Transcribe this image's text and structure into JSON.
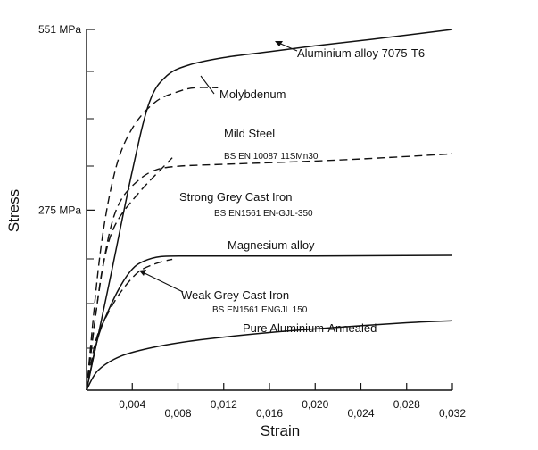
{
  "chart_data": {
    "type": "line",
    "xlabel": "Strain",
    "ylabel": "Stress",
    "xlim": [
      0,
      0.032
    ],
    "ylim": [
      0,
      551
    ],
    "x_ticks": [
      {
        "value": 0.004,
        "label": "0,004",
        "row": "upper"
      },
      {
        "value": 0.008,
        "label": "0,008",
        "row": "lower"
      },
      {
        "value": 0.012,
        "label": "0,012",
        "row": "upper"
      },
      {
        "value": 0.016,
        "label": "0,016",
        "row": "lower"
      },
      {
        "value": 0.02,
        "label": "0,020",
        "row": "upper"
      },
      {
        "value": 0.024,
        "label": "0,024",
        "row": "lower"
      },
      {
        "value": 0.028,
        "label": "0,028",
        "row": "upper"
      },
      {
        "value": 0.032,
        "label": "0,032",
        "row": "lower"
      }
    ],
    "y_ticks": [
      {
        "value": 551,
        "label": "551 MPa"
      },
      {
        "value": 275,
        "label": "275 MPa"
      }
    ],
    "grid": false,
    "series": [
      {
        "name": "Aluminium alloy 7075-T6",
        "style": "solid",
        "points": [
          [
            0,
            0
          ],
          [
            0.002,
            165
          ],
          [
            0.004,
            335
          ],
          [
            0.0055,
            440
          ],
          [
            0.007,
            480
          ],
          [
            0.009,
            497
          ],
          [
            0.012,
            508
          ],
          [
            0.016,
            517
          ],
          [
            0.02,
            526
          ],
          [
            0.025,
            536
          ],
          [
            0.032,
            551
          ]
        ]
      },
      {
        "name": "Molybdenum",
        "style": "dashed",
        "points": [
          [
            0,
            0
          ],
          [
            0.0012,
            210
          ],
          [
            0.0025,
            335
          ],
          [
            0.004,
            400
          ],
          [
            0.006,
            440
          ],
          [
            0.008,
            456
          ],
          [
            0.0095,
            462
          ],
          [
            0.0115,
            462
          ]
        ]
      },
      {
        "name": "Mild Steel",
        "sub": "BS EN 10087 11SMn30",
        "style": "dashed",
        "points": [
          [
            0,
            0
          ],
          [
            0.001,
            140
          ],
          [
            0.002,
            240
          ],
          [
            0.003,
            290
          ],
          [
            0.0045,
            320
          ],
          [
            0.006,
            336
          ],
          [
            0.008,
            342
          ],
          [
            0.012,
            345
          ],
          [
            0.02,
            350
          ],
          [
            0.026,
            355
          ],
          [
            0.032,
            361
          ]
        ]
      },
      {
        "name": "Strong Grey Cast Iron",
        "sub": "BS EN1561 EN-GJL-350",
        "style": "dashed",
        "points": [
          [
            0,
            0
          ],
          [
            0.0008,
            115
          ],
          [
            0.0015,
            195
          ],
          [
            0.0025,
            252
          ],
          [
            0.0045,
            300
          ],
          [
            0.0075,
            355
          ]
        ]
      },
      {
        "name": "Magnesium alloy",
        "style": "solid",
        "points": [
          [
            0,
            0
          ],
          [
            0.001,
            80
          ],
          [
            0.002,
            125
          ],
          [
            0.003,
            160
          ],
          [
            0.004,
            185
          ],
          [
            0.005,
            197
          ],
          [
            0.0065,
            204
          ],
          [
            0.009,
            205
          ],
          [
            0.012,
            205
          ],
          [
            0.016,
            205
          ],
          [
            0.02,
            205
          ],
          [
            0.032,
            206
          ]
        ]
      },
      {
        "name": "Weak Grey Cast Iron",
        "sub": "BS EN1561 ENGJL 150",
        "style": "dashed",
        "points": [
          [
            0,
            0
          ],
          [
            0.0008,
            75
          ],
          [
            0.0018,
            115
          ],
          [
            0.003,
            150
          ],
          [
            0.0045,
            180
          ],
          [
            0.006,
            193
          ],
          [
            0.0075,
            200
          ]
        ]
      },
      {
        "name": "Pure Aluminium-Annealed",
        "style": "solid",
        "points": [
          [
            0,
            0
          ],
          [
            0.001,
            30
          ],
          [
            0.003,
            52
          ],
          [
            0.006,
            66
          ],
          [
            0.01,
            77
          ],
          [
            0.016,
            88
          ],
          [
            0.022,
            96
          ],
          [
            0.028,
            103
          ],
          [
            0.032,
            106
          ]
        ]
      }
    ]
  }
}
